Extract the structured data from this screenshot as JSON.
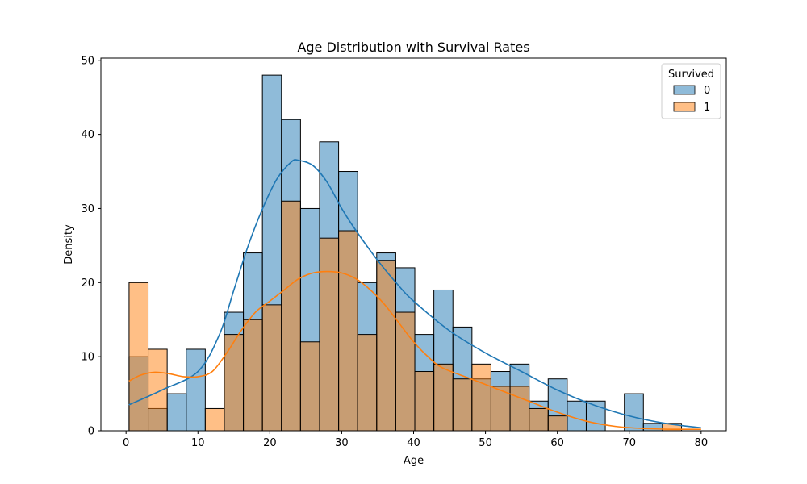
{
  "chart_data": {
    "type": "histogram",
    "title": "Age Distribution with Survival Rates",
    "xlabel": "Age",
    "ylabel": "Density",
    "xlim": [
      -3.5,
      83.5
    ],
    "ylim": [
      0,
      50.3
    ],
    "xticks": [
      0,
      10,
      20,
      30,
      40,
      50,
      60,
      70,
      80
    ],
    "yticks": [
      0,
      10,
      20,
      30,
      40,
      50
    ],
    "grid": false,
    "legend": {
      "title": "Survived",
      "placement": "top-right",
      "entries": [
        "0",
        "1"
      ]
    },
    "bin_start": 0.42,
    "bin_width": 2.65,
    "series": [
      {
        "name": "0",
        "color": "#1f77b4",
        "counts": [
          10,
          3,
          5,
          11,
          0,
          16,
          24,
          48,
          42,
          30,
          39,
          35,
          20,
          24,
          22,
          13,
          19,
          14,
          7,
          8,
          9,
          4,
          7,
          4,
          4,
          0,
          5,
          1,
          0
        ],
        "kde": [
          [
            0.4,
            3.5
          ],
          [
            5,
            5.5
          ],
          [
            10,
            8
          ],
          [
            13,
            13
          ],
          [
            15,
            19
          ],
          [
            17,
            25
          ],
          [
            19,
            30
          ],
          [
            21,
            34
          ],
          [
            23,
            36.3
          ],
          [
            24,
            36.5
          ],
          [
            26,
            35.8
          ],
          [
            28,
            33.5
          ],
          [
            30,
            30
          ],
          [
            32,
            27
          ],
          [
            35,
            23
          ],
          [
            38,
            19.5
          ],
          [
            40,
            17.5
          ],
          [
            45,
            13.5
          ],
          [
            50,
            10.5
          ],
          [
            55,
            8
          ],
          [
            60,
            5.5
          ],
          [
            65,
            3.5
          ],
          [
            70,
            2
          ],
          [
            75,
            1
          ],
          [
            80,
            0.4
          ]
        ]
      },
      {
        "name": "1",
        "color": "#ff7f0e",
        "counts": [
          20,
          11,
          0,
          0,
          3,
          13,
          15,
          17,
          31,
          12,
          26,
          27,
          13,
          23,
          16,
          8,
          9,
          7,
          9,
          6,
          6,
          3,
          2,
          0,
          0,
          0,
          0,
          0,
          1
        ],
        "kde": [
          [
            0.4,
            6.7
          ],
          [
            2,
            7.5
          ],
          [
            4,
            7.9
          ],
          [
            6,
            7.7
          ],
          [
            8,
            7.3
          ],
          [
            10,
            7.3
          ],
          [
            12,
            8
          ],
          [
            14,
            10.5
          ],
          [
            16,
            13.5
          ],
          [
            18,
            16
          ],
          [
            20,
            17.5
          ],
          [
            22,
            19
          ],
          [
            24,
            20.5
          ],
          [
            26,
            21.3
          ],
          [
            28,
            21.5
          ],
          [
            30,
            21.3
          ],
          [
            32,
            20.5
          ],
          [
            34,
            19
          ],
          [
            36,
            17
          ],
          [
            38,
            14.5
          ],
          [
            40,
            12
          ],
          [
            42,
            10
          ],
          [
            44,
            8.5
          ],
          [
            48,
            7
          ],
          [
            52,
            5.5
          ],
          [
            56,
            4
          ],
          [
            60,
            2.5
          ],
          [
            64,
            1.3
          ],
          [
            68,
            0.6
          ],
          [
            72,
            0.3
          ],
          [
            76,
            0.2
          ],
          [
            80,
            0.2
          ]
        ]
      }
    ]
  }
}
